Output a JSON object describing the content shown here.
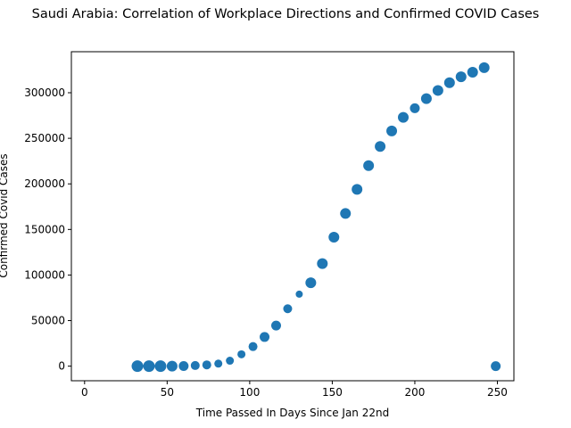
{
  "chart_data": {
    "type": "scatter",
    "title": "Saudi Arabia: Correlation of Workplace Directions and Confirmed COVID Cases",
    "xlabel": "Time Passed In Days Since Jan 22nd",
    "ylabel": "Confirmed Covid Cases",
    "xlim": [
      -8,
      260
    ],
    "ylim": [
      -16000,
      345000
    ],
    "x_ticks": [
      0,
      50,
      100,
      150,
      200,
      250
    ],
    "y_ticks": [
      0,
      50000,
      100000,
      150000,
      200000,
      250000,
      300000
    ],
    "grid": false,
    "marker_color": "#1f77b4",
    "points": [
      {
        "x": 32,
        "y": 0,
        "r": 6.5
      },
      {
        "x": 39,
        "y": 0,
        "r": 6.5
      },
      {
        "x": 46,
        "y": 0,
        "r": 6.5
      },
      {
        "x": 53,
        "y": 0,
        "r": 6.0
      },
      {
        "x": 60,
        "y": 100,
        "r": 5.5
      },
      {
        "x": 67,
        "y": 700,
        "r": 5.0
      },
      {
        "x": 74,
        "y": 1400,
        "r": 5.0
      },
      {
        "x": 81,
        "y": 2800,
        "r": 4.5
      },
      {
        "x": 88,
        "y": 6000,
        "r": 4.5
      },
      {
        "x": 95,
        "y": 13000,
        "r": 4.5
      },
      {
        "x": 102,
        "y": 21500,
        "r": 5.0
      },
      {
        "x": 109,
        "y": 32000,
        "r": 5.5
      },
      {
        "x": 116,
        "y": 44500,
        "r": 5.5
      },
      {
        "x": 123,
        "y": 63000,
        "r": 5.0
      },
      {
        "x": 130,
        "y": 79000,
        "r": 4.0
      },
      {
        "x": 137,
        "y": 91500,
        "r": 6.0
      },
      {
        "x": 144,
        "y": 112500,
        "r": 6.0
      },
      {
        "x": 151,
        "y": 141500,
        "r": 6.0
      },
      {
        "x": 158,
        "y": 167500,
        "r": 6.0
      },
      {
        "x": 165,
        "y": 194000,
        "r": 6.0
      },
      {
        "x": 172,
        "y": 220000,
        "r": 6.0
      },
      {
        "x": 179,
        "y": 241000,
        "r": 6.0
      },
      {
        "x": 186,
        "y": 258000,
        "r": 6.0
      },
      {
        "x": 193,
        "y": 273000,
        "r": 6.0
      },
      {
        "x": 200,
        "y": 283000,
        "r": 5.5
      },
      {
        "x": 207,
        "y": 293500,
        "r": 6.0
      },
      {
        "x": 214,
        "y": 302500,
        "r": 6.0
      },
      {
        "x": 221,
        "y": 311000,
        "r": 6.0
      },
      {
        "x": 228,
        "y": 317500,
        "r": 6.0
      },
      {
        "x": 235,
        "y": 322500,
        "r": 6.0
      },
      {
        "x": 242,
        "y": 327500,
        "r": 6.0
      },
      {
        "x": 249,
        "y": 0,
        "r": 5.5
      }
    ]
  }
}
